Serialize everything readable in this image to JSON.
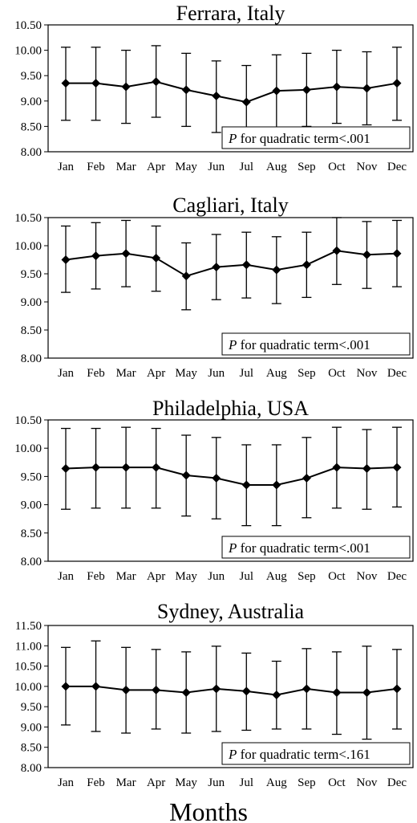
{
  "xlabel": "Months",
  "chart_data": [
    {
      "type": "line",
      "title": "Ferrara, Italy",
      "categories": [
        "Jan",
        "Feb",
        "Mar",
        "Apr",
        "May",
        "Jun",
        "Jul",
        "Aug",
        "Sep",
        "Oct",
        "Nov",
        "Dec"
      ],
      "values": [
        9.35,
        9.35,
        9.28,
        9.38,
        9.22,
        9.1,
        8.98,
        9.2,
        9.22,
        9.28,
        9.25,
        9.35
      ],
      "error_low": [
        8.62,
        8.62,
        8.56,
        8.68,
        8.5,
        8.38,
        8.27,
        8.48,
        8.5,
        8.56,
        8.53,
        8.62
      ],
      "error_high": [
        10.06,
        10.06,
        10.0,
        10.09,
        9.94,
        9.79,
        9.7,
        9.91,
        9.94,
        10.0,
        9.97,
        10.06
      ],
      "yticks": [
        "8.00",
        "8.50",
        "9.00",
        "9.50",
        "10.00",
        "10.50"
      ],
      "ylim": [
        8.0,
        10.5
      ],
      "annotation_italic": "P",
      "annotation_text": " for quadratic term<.001",
      "marker": "diamond",
      "legend": "none",
      "grid": false
    },
    {
      "type": "line",
      "title": "Cagliari, Italy",
      "categories": [
        "Jan",
        "Feb",
        "Mar",
        "Apr",
        "May",
        "Jun",
        "Jul",
        "Aug",
        "Sep",
        "Oct",
        "Nov",
        "Dec"
      ],
      "values": [
        9.75,
        9.82,
        9.86,
        9.78,
        9.46,
        9.62,
        9.66,
        9.57,
        9.66,
        9.91,
        9.84,
        9.86
      ],
      "error_low": [
        9.17,
        9.23,
        9.27,
        9.19,
        8.86,
        9.04,
        9.07,
        8.97,
        9.08,
        9.31,
        9.24,
        9.27
      ],
      "error_high": [
        10.35,
        10.41,
        10.45,
        10.35,
        10.05,
        10.2,
        10.24,
        10.16,
        10.24,
        10.5,
        10.43,
        10.45
      ],
      "yticks": [
        "8.00",
        "8.50",
        "9.00",
        "9.50",
        "10.00",
        "10.50"
      ],
      "ylim": [
        8.0,
        10.5
      ],
      "annotation_italic": "P",
      "annotation_text": " for quadratic term<.001",
      "marker": "diamond",
      "legend": "none",
      "grid": false
    },
    {
      "type": "line",
      "title": "Philadelphia, USA",
      "categories": [
        "Jan",
        "Feb",
        "Mar",
        "Apr",
        "May",
        "Jun",
        "Jul",
        "Aug",
        "Sep",
        "Oct",
        "Nov",
        "Dec"
      ],
      "values": [
        9.64,
        9.66,
        9.66,
        9.66,
        9.52,
        9.47,
        9.35,
        9.35,
        9.47,
        9.66,
        9.64,
        9.66
      ],
      "error_low": [
        8.92,
        8.94,
        8.94,
        8.94,
        8.8,
        8.75,
        8.63,
        8.63,
        8.77,
        8.94,
        8.92,
        8.96
      ],
      "error_high": [
        10.35,
        10.35,
        10.37,
        10.35,
        10.23,
        10.19,
        10.06,
        10.06,
        10.19,
        10.37,
        10.33,
        10.37
      ],
      "yticks": [
        "8.00",
        "8.50",
        "9.00",
        "9.50",
        "10.00",
        "10.50"
      ],
      "ylim": [
        8.0,
        10.5
      ],
      "annotation_italic": "P",
      "annotation_text": " for quadratic term<.001",
      "marker": "diamond",
      "legend": "none",
      "grid": false
    },
    {
      "type": "line",
      "title": "Sydney, Australia",
      "categories": [
        "Jan",
        "Feb",
        "Mar",
        "Apr",
        "May",
        "Jun",
        "Jul",
        "Aug",
        "Sep",
        "Oct",
        "Nov",
        "Dec"
      ],
      "values": [
        10.0,
        10.0,
        9.91,
        9.91,
        9.85,
        9.94,
        9.88,
        9.79,
        9.94,
        9.85,
        9.85,
        9.94
      ],
      "error_low": [
        9.05,
        8.89,
        8.85,
        8.95,
        8.85,
        8.89,
        8.92,
        8.95,
        8.95,
        8.82,
        8.7,
        8.95
      ],
      "error_high": [
        10.96,
        11.12,
        10.96,
        10.91,
        10.85,
        10.99,
        10.82,
        10.62,
        10.93,
        10.85,
        10.99,
        10.91
      ],
      "yticks": [
        "8.00",
        "8.50",
        "9.00",
        "9.50",
        "10.00",
        "10.50",
        "11.00",
        "11.50"
      ],
      "ylim": [
        8.0,
        11.5
      ],
      "annotation_italic": "P",
      "annotation_text": " for quadratic term<.161",
      "marker": "diamond",
      "legend": "none",
      "grid": false
    }
  ]
}
